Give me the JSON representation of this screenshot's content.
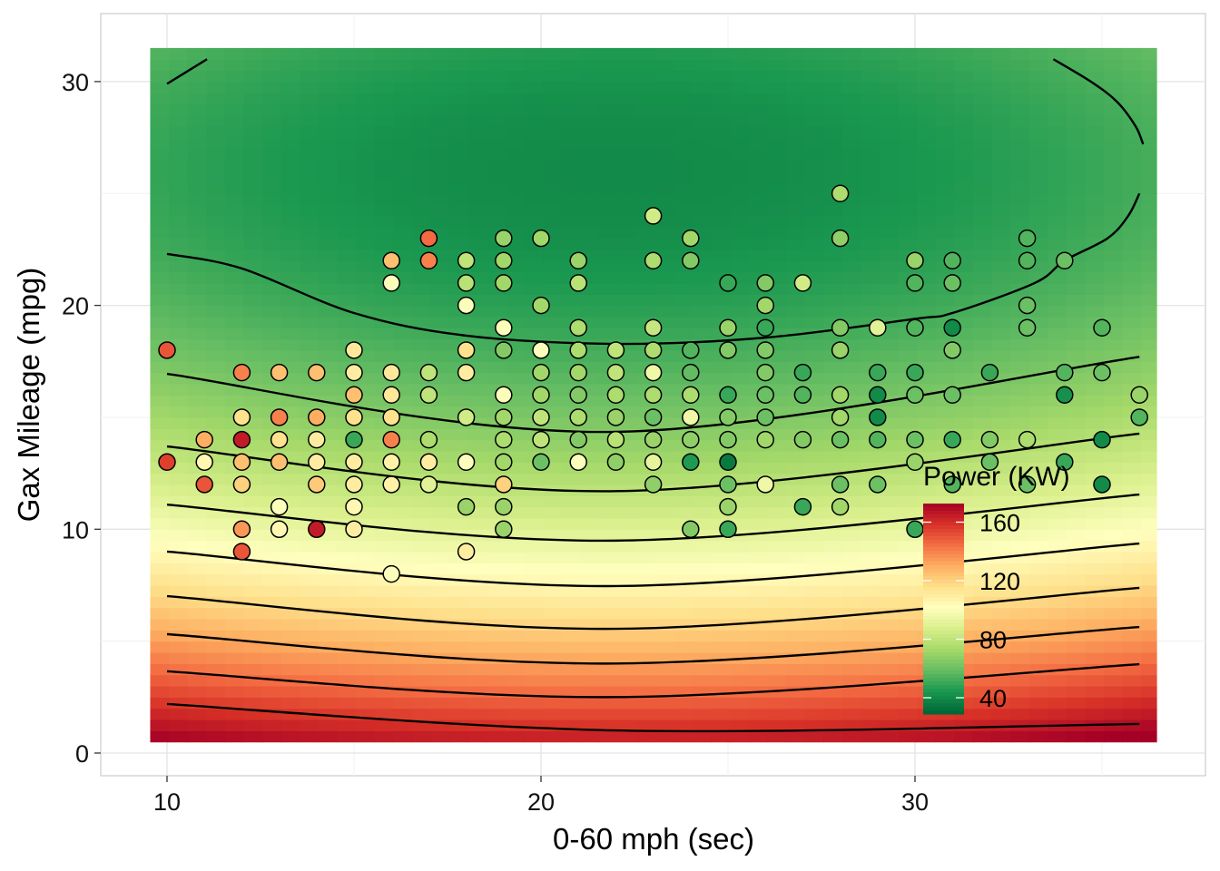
{
  "chart_data": {
    "type": "scatter",
    "title": "",
    "xlabel": "0-60 mph (sec)",
    "ylabel": "Gax Mileage (mpg)",
    "xlim": [
      8.2,
      37.8
    ],
    "ylim": [
      -1.0,
      33.0
    ],
    "x_ticks": [
      10,
      20,
      30
    ],
    "y_ticks": [
      0,
      10,
      20,
      30
    ],
    "grid": true,
    "legend": {
      "title": "Power (KW)",
      "position": "bottom-right inside",
      "ticks": [
        160,
        120,
        80,
        40
      ],
      "range": [
        30,
        173
      ]
    },
    "color_scale": [
      "#006837",
      "#1a9850",
      "#66bd63",
      "#a6d96a",
      "#d9ef8b",
      "#ffffbf",
      "#fee08b",
      "#fdae61",
      "#f46d43",
      "#d73027",
      "#a50026"
    ],
    "background": "filled fitted power surface with contour lines",
    "contours": [
      [
        [
          10,
          2.19
        ],
        [
          22,
          1.01
        ],
        [
          36,
          1.3
        ]
      ],
      [
        [
          10,
          3.65
        ],
        [
          22,
          2.5
        ],
        [
          36,
          3.97
        ]
      ],
      [
        [
          10,
          5.31
        ],
        [
          22,
          4.0
        ],
        [
          36,
          5.63
        ]
      ],
      [
        [
          10,
          7.01
        ],
        [
          22,
          5.55
        ],
        [
          36,
          7.38
        ]
      ],
      [
        [
          10,
          9.0
        ],
        [
          22,
          7.46
        ],
        [
          36,
          9.36
        ]
      ],
      [
        [
          10,
          11.1
        ],
        [
          22,
          9.49
        ],
        [
          36,
          11.55
        ]
      ],
      [
        [
          10,
          13.7
        ],
        [
          22,
          11.7
        ],
        [
          36,
          14.27
        ]
      ],
      [
        [
          10,
          16.94
        ],
        [
          22,
          14.35
        ],
        [
          36,
          17.7
        ]
      ],
      [
        [
          10,
          22.3
        ],
        [
          12,
          21.65
        ],
        [
          15,
          19.66
        ],
        [
          18,
          18.65
        ],
        [
          22,
          18.28
        ],
        [
          26,
          18.56
        ],
        [
          30,
          19.4
        ],
        [
          31,
          19.66
        ],
        [
          33.2,
          21.0
        ],
        [
          34,
          22.0
        ],
        [
          35.15,
          23.0
        ],
        [
          35.7,
          24.0
        ],
        [
          36,
          25.0
        ]
      ],
      [
        [
          10,
          29.9
        ],
        [
          11.07,
          31.0
        ]
      ],
      [
        [
          33.7,
          31.0
        ],
        [
          34.7,
          30.0
        ],
        [
          35.4,
          29.1
        ],
        [
          35.9,
          28.0
        ],
        [
          36.1,
          27.2
        ]
      ]
    ],
    "points_columns": [
      "accel_sec",
      "mpg",
      "power_kw"
    ],
    "points": [
      [
        10,
        18,
        150
      ],
      [
        10,
        13,
        155
      ],
      [
        11,
        14,
        130
      ],
      [
        11,
        13,
        105
      ],
      [
        11,
        12,
        150
      ],
      [
        12,
        17,
        140
      ],
      [
        12,
        15,
        115
      ],
      [
        12,
        14,
        165
      ],
      [
        12,
        13,
        125
      ],
      [
        12,
        12,
        120
      ],
      [
        12,
        10,
        135
      ],
      [
        12,
        9,
        150
      ],
      [
        13,
        17,
        125
      ],
      [
        13,
        15,
        140
      ],
      [
        13,
        14,
        115
      ],
      [
        13,
        13,
        125
      ],
      [
        13,
        11,
        100
      ],
      [
        13,
        10,
        105
      ],
      [
        14,
        17,
        125
      ],
      [
        14,
        15,
        130
      ],
      [
        14,
        14,
        110
      ],
      [
        14,
        13,
        110
      ],
      [
        14,
        12,
        122
      ],
      [
        14,
        10,
        165
      ],
      [
        15,
        18,
        112
      ],
      [
        15,
        17,
        110
      ],
      [
        15,
        16,
        125
      ],
      [
        15,
        15,
        115
      ],
      [
        15,
        14,
        50
      ],
      [
        15,
        13,
        110
      ],
      [
        15,
        12,
        110
      ],
      [
        15,
        11,
        105
      ],
      [
        15,
        10,
        110
      ],
      [
        16,
        22,
        125
      ],
      [
        16,
        21,
        100
      ],
      [
        16,
        17,
        112
      ],
      [
        16,
        16,
        112
      ],
      [
        16,
        15,
        115
      ],
      [
        16,
        14,
        140
      ],
      [
        16,
        13,
        108
      ],
      [
        16,
        12,
        108
      ],
      [
        16,
        8,
        100
      ],
      [
        17,
        23,
        145
      ],
      [
        17,
        22,
        140
      ],
      [
        17,
        17,
        80
      ],
      [
        17,
        16,
        80
      ],
      [
        17,
        14,
        75
      ],
      [
        17,
        13,
        110
      ],
      [
        17,
        12,
        90
      ],
      [
        18,
        22,
        80
      ],
      [
        18,
        21,
        78
      ],
      [
        18,
        20,
        100
      ],
      [
        18,
        18,
        115
      ],
      [
        18,
        17,
        110
      ],
      [
        18,
        15,
        85
      ],
      [
        18,
        13,
        100
      ],
      [
        18,
        11,
        70
      ],
      [
        18,
        9,
        110
      ],
      [
        19,
        23,
        70
      ],
      [
        19,
        22,
        72
      ],
      [
        19,
        21,
        72
      ],
      [
        19,
        19,
        100
      ],
      [
        19,
        18,
        65
      ],
      [
        19,
        16,
        100
      ],
      [
        19,
        15,
        72
      ],
      [
        19,
        14,
        75
      ],
      [
        19,
        13,
        72
      ],
      [
        19,
        12,
        120
      ],
      [
        19,
        11,
        70
      ],
      [
        19,
        10,
        70
      ],
      [
        20,
        23,
        72
      ],
      [
        20,
        20,
        72
      ],
      [
        20,
        18,
        100
      ],
      [
        20,
        17,
        72
      ],
      [
        20,
        16,
        72
      ],
      [
        20,
        15,
        80
      ],
      [
        20,
        14,
        80
      ],
      [
        20,
        13,
        60
      ],
      [
        21,
        22,
        70
      ],
      [
        21,
        21,
        78
      ],
      [
        21,
        19,
        75
      ],
      [
        21,
        18,
        75
      ],
      [
        21,
        17,
        72
      ],
      [
        21,
        16,
        65
      ],
      [
        21,
        15,
        75
      ],
      [
        21,
        14,
        65
      ],
      [
        21,
        13,
        100
      ],
      [
        22,
        18,
        80
      ],
      [
        22,
        17,
        80
      ],
      [
        22,
        16,
        75
      ],
      [
        22,
        15,
        70
      ],
      [
        22,
        14,
        78
      ],
      [
        22,
        13,
        68
      ],
      [
        23,
        24,
        85
      ],
      [
        23,
        22,
        75
      ],
      [
        23,
        19,
        82
      ],
      [
        23,
        18,
        75
      ],
      [
        23,
        17,
        95
      ],
      [
        23,
        16,
        75
      ],
      [
        23,
        15,
        60
      ],
      [
        23,
        14,
        70
      ],
      [
        23,
        13,
        92
      ],
      [
        23,
        12,
        68
      ],
      [
        24,
        23,
        72
      ],
      [
        24,
        22,
        65
      ],
      [
        24,
        18,
        55
      ],
      [
        24,
        17,
        58
      ],
      [
        24,
        16,
        75
      ],
      [
        24,
        15,
        95
      ],
      [
        24,
        14,
        68
      ],
      [
        24,
        13,
        45
      ],
      [
        24,
        10,
        65
      ],
      [
        25,
        21,
        50
      ],
      [
        25,
        19,
        70
      ],
      [
        25,
        18,
        65
      ],
      [
        25,
        16,
        50
      ],
      [
        25,
        15,
        65
      ],
      [
        25,
        14,
        65
      ],
      [
        25,
        13,
        35
      ],
      [
        25,
        12,
        60
      ],
      [
        25,
        11,
        70
      ],
      [
        25,
        10,
        50
      ],
      [
        26,
        21,
        65
      ],
      [
        26,
        20,
        72
      ],
      [
        26,
        19,
        50
      ],
      [
        26,
        18,
        65
      ],
      [
        26,
        17,
        65
      ],
      [
        26,
        16,
        60
      ],
      [
        26,
        15,
        60
      ],
      [
        26,
        14,
        72
      ],
      [
        26,
        12,
        95
      ],
      [
        27,
        21,
        85
      ],
      [
        27,
        17,
        50
      ],
      [
        27,
        16,
        55
      ],
      [
        27,
        14,
        65
      ],
      [
        27,
        11,
        50
      ],
      [
        28,
        25,
        75
      ],
      [
        28,
        23,
        68
      ],
      [
        28,
        19,
        65
      ],
      [
        28,
        18,
        70
      ],
      [
        28,
        16,
        72
      ],
      [
        28,
        15,
        72
      ],
      [
        28,
        14,
        60
      ],
      [
        28,
        12,
        60
      ],
      [
        28,
        11,
        72
      ],
      [
        29,
        19,
        90
      ],
      [
        29,
        17,
        50
      ],
      [
        29,
        16,
        40
      ],
      [
        29,
        15,
        40
      ],
      [
        29,
        14,
        55
      ],
      [
        29,
        12,
        60
      ],
      [
        30,
        22,
        70
      ],
      [
        30,
        21,
        55
      ],
      [
        30,
        19,
        55
      ],
      [
        30,
        17,
        50
      ],
      [
        30,
        16,
        60
      ],
      [
        30,
        14,
        60
      ],
      [
        30,
        13,
        70
      ],
      [
        30,
        10,
        50
      ],
      [
        31,
        22,
        55
      ],
      [
        31,
        21,
        60
      ],
      [
        31,
        19,
        40
      ],
      [
        31,
        18,
        65
      ],
      [
        31,
        16,
        60
      ],
      [
        31,
        14,
        50
      ],
      [
        31,
        12,
        55
      ],
      [
        32,
        17,
        50
      ],
      [
        32,
        14,
        65
      ],
      [
        32,
        13,
        60
      ],
      [
        33,
        23,
        55
      ],
      [
        33,
        22,
        55
      ],
      [
        33,
        20,
        60
      ],
      [
        33,
        19,
        60
      ],
      [
        33,
        14,
        75
      ],
      [
        33,
        12,
        60
      ],
      [
        34,
        22,
        60
      ],
      [
        34,
        17,
        55
      ],
      [
        34,
        16,
        42
      ],
      [
        34,
        13,
        50
      ],
      [
        35,
        19,
        55
      ],
      [
        35,
        17,
        60
      ],
      [
        35,
        14,
        40
      ],
      [
        35,
        12,
        40
      ],
      [
        36,
        16,
        70
      ],
      [
        36,
        15,
        55
      ]
    ]
  }
}
